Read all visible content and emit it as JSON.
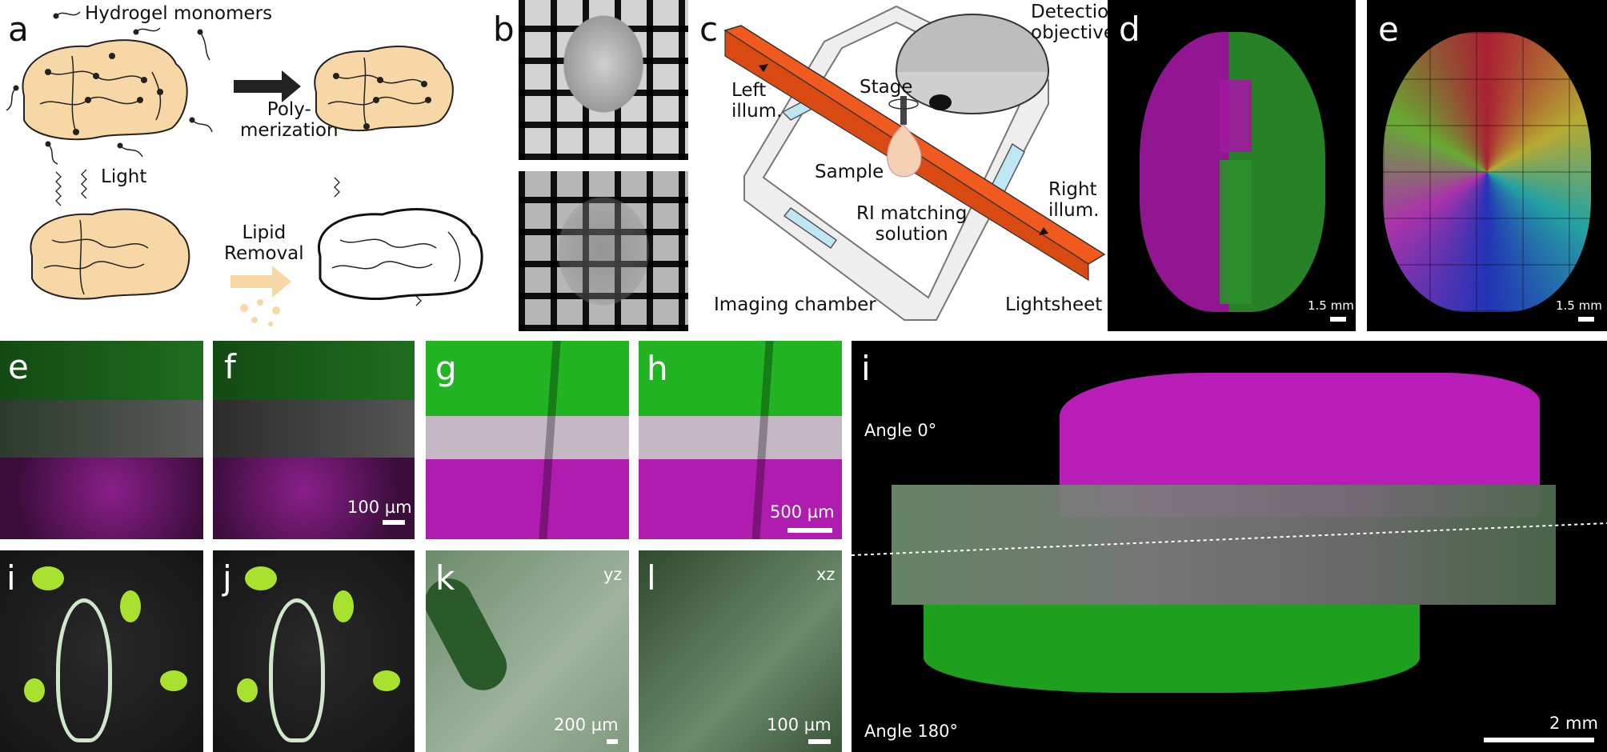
{
  "panels": {
    "a": {
      "label": "a",
      "monomers": "Hydrogel monomers",
      "poly": "Poly-\nmerization",
      "light": "Light",
      "lipid": "Lipid\nRemoval"
    },
    "b": {
      "label": "b"
    },
    "c": {
      "label": "c",
      "detection": "Detection\nobjective",
      "left_illum": "Left\nillum.",
      "stage": "Stage",
      "sample": "Sample",
      "right_illum": "Right\nillum.",
      "ri": "RI matching\nsolution",
      "chamber": "Imaging chamber",
      "lightsheet": "Lightsheet"
    },
    "d": {
      "label": "d",
      "scale": "1.5 mm"
    },
    "e_top": {
      "label": "e",
      "scale": "1.5 mm"
    },
    "e": {
      "label": "e"
    },
    "f": {
      "label": "f",
      "scale": "100 µm"
    },
    "g": {
      "label": "g"
    },
    "h": {
      "label": "h",
      "scale": "500 µm"
    },
    "i_big": {
      "label": "i",
      "angle0": "Angle 0°",
      "angle180": "Angle 180°",
      "scale": "2 mm"
    },
    "i": {
      "label": "i"
    },
    "j": {
      "label": "j"
    },
    "k": {
      "label": "k",
      "plane": "yz",
      "scale": "200 µm"
    },
    "l": {
      "label": "l",
      "plane": "xz",
      "scale": "100 µm"
    }
  },
  "colors": {
    "green": "#2fbf2f",
    "magenta": "#c21fc2",
    "orange": "#f05a1e",
    "brain": "#f6d7a5",
    "glass": "#bfe6f5"
  }
}
